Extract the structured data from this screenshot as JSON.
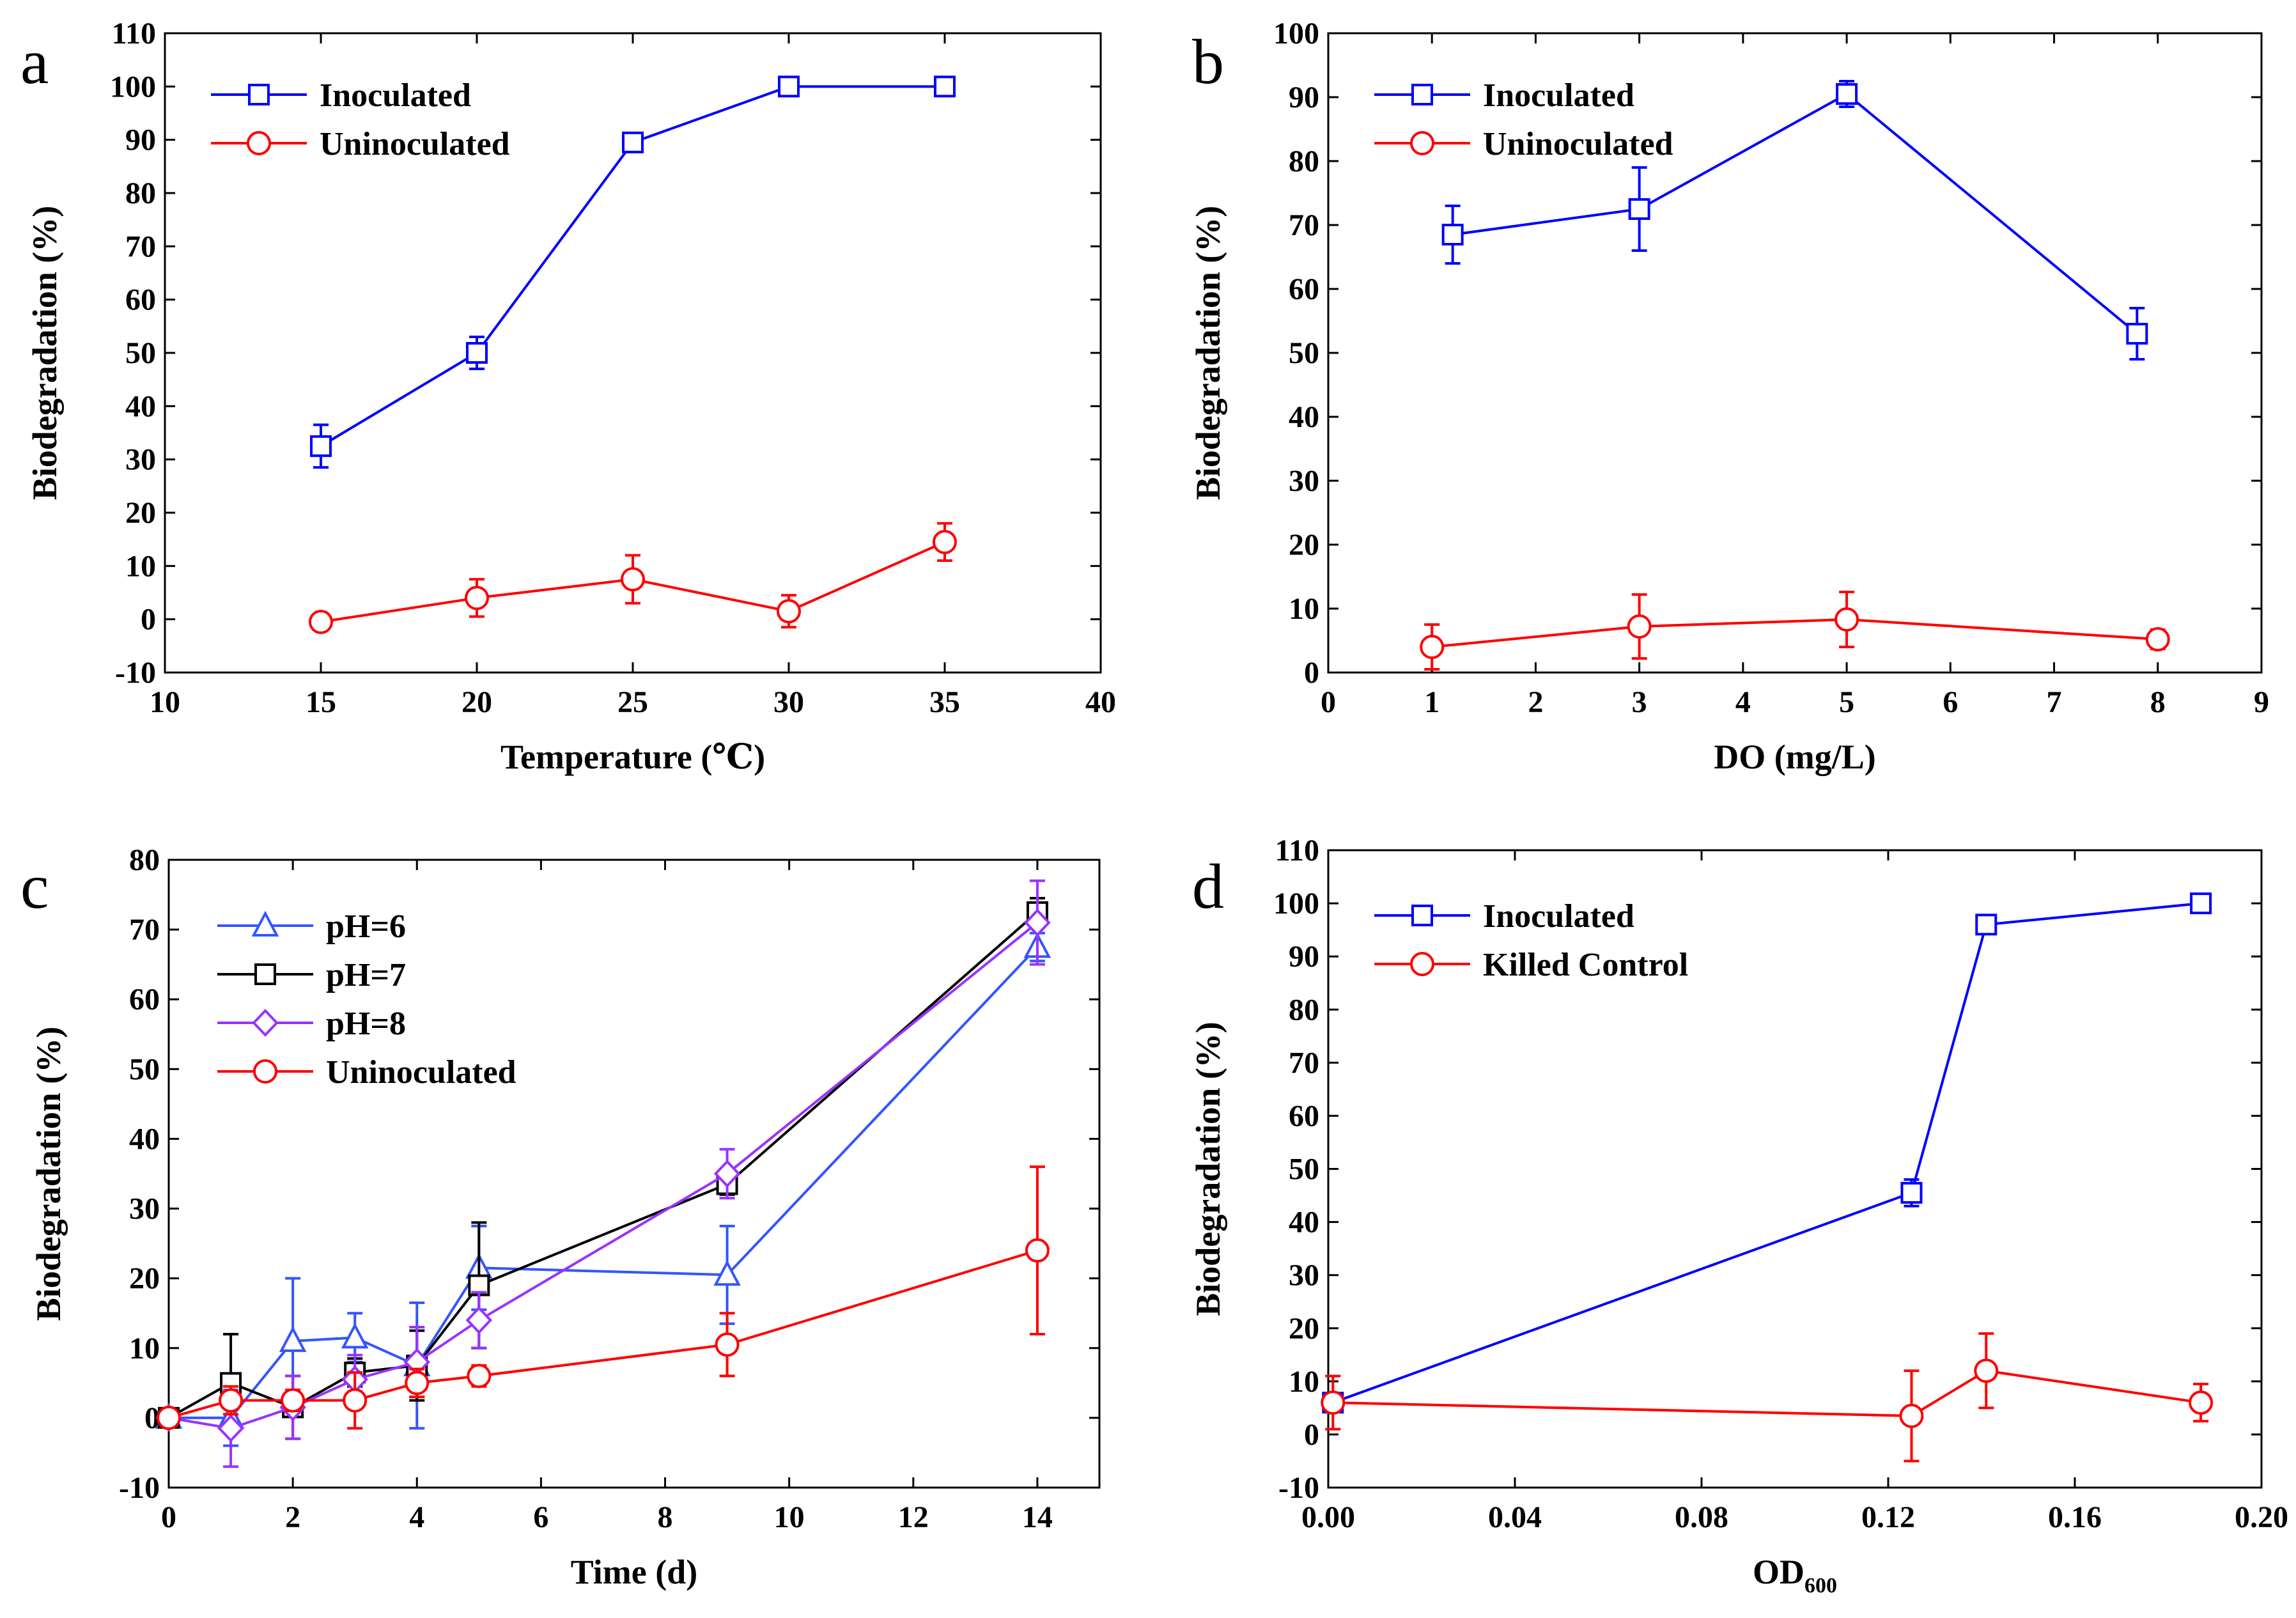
{
  "chart_data": [
    {
      "panel": "a",
      "type": "line",
      "xlabel": "Temperature (℃)",
      "ylabel": "Biodegradation (%)",
      "xlim": [
        10,
        40
      ],
      "ylim": [
        -10,
        110
      ],
      "xticks": [
        10,
        15,
        20,
        25,
        30,
        35,
        40
      ],
      "yticks": [
        -10,
        0,
        10,
        20,
        30,
        40,
        50,
        60,
        70,
        80,
        90,
        100,
        110
      ],
      "legend_position": "top-left",
      "series": [
        {
          "name": "Inoculated",
          "color": "#0000ff",
          "marker": "square",
          "x": [
            15,
            20,
            25,
            30,
            35
          ],
          "y": [
            32.5,
            50,
            89.5,
            100,
            100
          ],
          "err": [
            4,
            3,
            1,
            0.3,
            0.3
          ]
        },
        {
          "name": "Uninoculated",
          "color": "#ff0000",
          "marker": "circle",
          "x": [
            15,
            20,
            25,
            30,
            35
          ],
          "y": [
            -0.5,
            4,
            7.5,
            1.5,
            14.5
          ],
          "err": [
            0.5,
            3.5,
            4.5,
            3,
            3.5
          ]
        }
      ]
    },
    {
      "panel": "b",
      "type": "line",
      "xlabel": "DO (mg/L)",
      "ylabel": "Biodegradation (%)",
      "xlim": [
        0,
        9
      ],
      "ylim": [
        0,
        100
      ],
      "xticks": [
        0,
        1,
        2,
        3,
        4,
        5,
        6,
        7,
        8,
        9
      ],
      "yticks": [
        0,
        10,
        20,
        30,
        40,
        50,
        60,
        70,
        80,
        90,
        100
      ],
      "legend_position": "top-left",
      "series": [
        {
          "name": "Inoculated",
          "color": "#0000ff",
          "marker": "square",
          "x": [
            1.2,
            3,
            5,
            7.8
          ],
          "y": [
            68.5,
            72.5,
            90.5,
            53
          ],
          "err": [
            4.5,
            6.5,
            2,
            4
          ]
        },
        {
          "name": "Uninoculated",
          "color": "#ff0000",
          "marker": "circle",
          "x": [
            1,
            3,
            5,
            8
          ],
          "y": [
            4,
            7.2,
            8.3,
            5.2
          ],
          "err": [
            3.5,
            5,
            4.3,
            1.5
          ]
        }
      ]
    },
    {
      "panel": "c",
      "type": "line",
      "xlabel": "Time (d)",
      "ylabel": "Biodegradation (%)",
      "xlim": [
        0,
        15
      ],
      "ylim": [
        -10,
        80
      ],
      "xticks": [
        0,
        2,
        4,
        6,
        8,
        10,
        12,
        14
      ],
      "yticks": [
        -10,
        0,
        10,
        20,
        30,
        40,
        50,
        60,
        70,
        80
      ],
      "legend_position": "top-left",
      "series": [
        {
          "name": "pH=6",
          "color": "#3355ff",
          "marker": "triangle",
          "x": [
            0,
            1,
            2,
            3,
            4,
            5,
            9,
            14
          ],
          "y": [
            0,
            0,
            11,
            11.5,
            7.5,
            21.5,
            20.5,
            67.5
          ],
          "err": [
            0,
            4,
            9,
            3.5,
            9,
            6,
            7,
            2
          ]
        },
        {
          "name": "pH=7",
          "color": "#000000",
          "marker": "square",
          "x": [
            0,
            1,
            2,
            3,
            4,
            5,
            9,
            14
          ],
          "y": [
            0,
            5,
            1.5,
            6.5,
            7.5,
            19,
            33.5,
            72.5
          ],
          "err": [
            0,
            7,
            4.5,
            2,
            5,
            9,
            1.5,
            2
          ]
        },
        {
          "name": "pH=8",
          "color": "#9933ff",
          "marker": "diamond",
          "x": [
            0,
            1,
            2,
            3,
            4,
            5,
            9,
            14
          ],
          "y": [
            0,
            -1.5,
            1.5,
            5.5,
            8,
            14,
            35,
            71
          ],
          "err": [
            0,
            5.5,
            4.5,
            3.5,
            5,
            4,
            3.5,
            6
          ]
        },
        {
          "name": "Uninoculated",
          "color": "#ff0000",
          "marker": "circle",
          "x": [
            0,
            1,
            2,
            3,
            4,
            5,
            9,
            14
          ],
          "y": [
            0,
            2.5,
            2.5,
            2.5,
            5,
            6,
            10.5,
            24
          ],
          "err": [
            0,
            2,
            1.5,
            4,
            2,
            1.5,
            4.5,
            12
          ]
        }
      ]
    },
    {
      "panel": "d",
      "type": "line",
      "xlabel": "OD",
      "xlabel_sub": "600",
      "ylabel": "Biodegradation (%)",
      "xlim": [
        0,
        0.2
      ],
      "ylim": [
        -10,
        110
      ],
      "xticks": [
        "0.00",
        "0.04",
        "0.08",
        "0.12",
        "0.16",
        "0.20"
      ],
      "yticks": [
        -10,
        0,
        10,
        20,
        30,
        40,
        50,
        60,
        70,
        80,
        90,
        100,
        110
      ],
      "legend_position": "top-left",
      "series": [
        {
          "name": "Inoculated",
          "color": "#0000ff",
          "marker": "square",
          "x": [
            0.001,
            0.125,
            0.141,
            0.187
          ],
          "y": [
            6,
            45.5,
            96,
            100
          ],
          "err": [
            0.5,
            2.5,
            0.8,
            0.3
          ]
        },
        {
          "name": "Killed Control",
          "color": "#ff0000",
          "marker": "circle",
          "x": [
            0.001,
            0.125,
            0.141,
            0.187
          ],
          "y": [
            6,
            3.5,
            12,
            6
          ],
          "err": [
            5,
            8.5,
            7,
            3.5
          ]
        }
      ]
    }
  ]
}
